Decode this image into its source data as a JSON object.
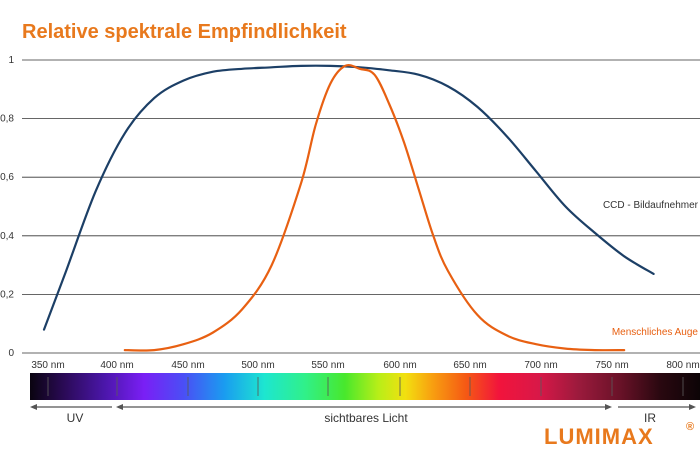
{
  "title": "Relative spektrale Empfindlichkeit",
  "chart_data": {
    "type": "line",
    "title": "Relative spektrale Empfindlichkeit",
    "xlabel": "",
    "ylabel": "",
    "xlim": [
      350,
      800
    ],
    "ylim": [
      0,
      1
    ],
    "grid": true,
    "x_ticks": [
      350,
      400,
      450,
      500,
      550,
      600,
      650,
      700,
      750,
      800
    ],
    "x_tick_labels": [
      "350 nm",
      "400 nm",
      "450 nm",
      "500 nm",
      "550 nm",
      "600 nm",
      "650 nm",
      "700 nm",
      "750 nm",
      "800 nm"
    ],
    "y_ticks": [
      0,
      0.2,
      0.4,
      0.6,
      0.8,
      1
    ],
    "y_tick_labels": [
      "0",
      "0,2",
      "0,4",
      "0,6",
      "0,8",
      "1"
    ],
    "series": [
      {
        "name": "CCD - Bildaufnehmer",
        "color": "#1c3f66",
        "x": [
          365,
          380,
          400,
          420,
          440,
          460,
          480,
          500,
          520,
          540,
          560,
          580,
          600,
          620,
          640,
          660,
          680,
          700,
          720,
          740,
          760,
          780
        ],
        "y": [
          0.08,
          0.28,
          0.55,
          0.75,
          0.87,
          0.93,
          0.96,
          0.97,
          0.975,
          0.98,
          0.98,
          0.975,
          0.965,
          0.95,
          0.91,
          0.84,
          0.74,
          0.62,
          0.5,
          0.41,
          0.33,
          0.27
        ]
      },
      {
        "name": "Menschliches Auge",
        "color": "#e86012",
        "x": [
          420,
          440,
          460,
          480,
          500,
          520,
          540,
          550,
          560,
          570,
          580,
          590,
          600,
          610,
          620,
          630,
          640,
          660,
          680,
          700,
          720,
          740,
          760
        ],
        "y": [
          0.01,
          0.01,
          0.03,
          0.07,
          0.15,
          0.3,
          0.58,
          0.78,
          0.92,
          0.98,
          0.97,
          0.95,
          0.85,
          0.72,
          0.56,
          0.4,
          0.28,
          0.13,
          0.06,
          0.03,
          0.015,
          0.01,
          0.01
        ]
      }
    ]
  },
  "spectrum": {
    "uv_label": "UV",
    "visible_label": "sichtbares Licht",
    "ir_label": "IR"
  },
  "brand": {
    "name": "LUMIMAX",
    "mark": "®",
    "color": "#e8791d"
  },
  "colors": {
    "title": "#e8791d",
    "ccd": "#1c3f66",
    "eye": "#e86012",
    "grid": "#333333"
  }
}
